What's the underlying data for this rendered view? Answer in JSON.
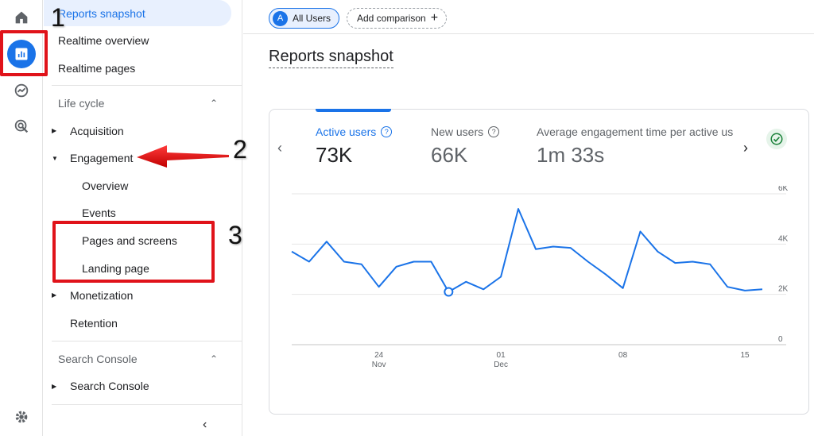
{
  "rail": {
    "icons": [
      "home-icon",
      "reports-icon",
      "explore-icon",
      "advertising-icon",
      "settings-icon"
    ]
  },
  "nav": {
    "items": [
      {
        "label": "Reports snapshot",
        "selected": true
      },
      {
        "label": "Realtime overview"
      },
      {
        "label": "Realtime pages"
      }
    ],
    "lifecycle": {
      "header": "Life cycle",
      "acquisition": "Acquisition",
      "engagement": "Engagement",
      "engagement_children": [
        "Overview",
        "Events",
        "Pages and screens",
        "Landing page"
      ],
      "monetization": "Monetization",
      "retention": "Retention"
    },
    "search_console": {
      "header": "Search Console",
      "item": "Search Console"
    }
  },
  "annotations": [
    "1",
    "2",
    "3"
  ],
  "topbar": {
    "segment_letter": "A",
    "segment_label": "All Users",
    "add_comparison": "Add comparison"
  },
  "page_title": "Reports snapshot",
  "metrics": [
    {
      "label": "Active users",
      "value": "73K",
      "active": true
    },
    {
      "label": "New users",
      "value": "66K"
    },
    {
      "label": "Average engagement time per active us",
      "value": "1m 33s"
    }
  ],
  "colors": {
    "accent": "#1a73e8",
    "annotation": "#e0131a",
    "line": "#1a73e8"
  },
  "chart_data": {
    "type": "line",
    "series": [
      {
        "values": [
          3700,
          3300,
          4100,
          3300,
          3200,
          2300,
          3100,
          3300,
          3300,
          2100,
          2500,
          2200,
          2700,
          5400,
          3800,
          3900,
          3850,
          3300,
          2800,
          2250,
          4500,
          3700,
          3250,
          3300,
          3200,
          2300,
          2150,
          2200
        ]
      }
    ],
    "x_ticks": [
      {
        "day": "24",
        "month": "Nov",
        "index": 5
      },
      {
        "day": "01",
        "month": "Dec",
        "index": 12
      },
      {
        "day": "08",
        "month": "",
        "index": 19
      },
      {
        "day": "15",
        "month": "",
        "index": 26
      }
    ],
    "y_ticks": [
      "6K",
      "4K",
      "2K",
      "0"
    ],
    "ylim": [
      0,
      6000
    ],
    "highlight_index": 9,
    "grid": true
  }
}
